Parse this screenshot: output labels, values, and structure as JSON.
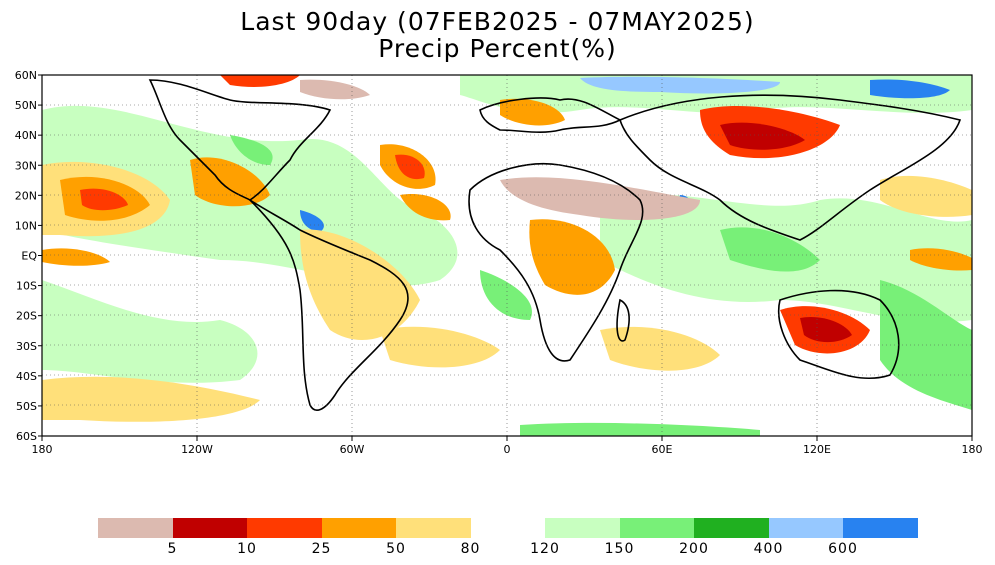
{
  "title": {
    "line1": "Last 90day (07FEB2025 - 07MAY2025)",
    "line2": "Precip Percent(%)"
  },
  "axes": {
    "lat_labels": [
      "60N",
      "50N",
      "40N",
      "30N",
      "20N",
      "10N",
      "EQ",
      "10S",
      "20S",
      "30S",
      "40S",
      "50S",
      "60S"
    ],
    "lon_labels": [
      "180",
      "120W",
      "60W",
      "0",
      "60E",
      "120E",
      "180"
    ]
  },
  "colorbar": {
    "low": [
      {
        "color": "#dcbab0"
      },
      {
        "color": "#c00000"
      },
      {
        "color": "#ff3a00"
      },
      {
        "color": "#ffa000"
      },
      {
        "color": "#ffe07a"
      }
    ],
    "high": [
      {
        "color": "#c8ffc0"
      },
      {
        "color": "#78f078"
      },
      {
        "color": "#20b020"
      },
      {
        "color": "#96c8ff"
      },
      {
        "color": "#2882f0"
      }
    ],
    "low_labels": [
      "5",
      "10",
      "25",
      "50",
      "80"
    ],
    "high_labels": [
      "120",
      "150",
      "200",
      "400",
      "600"
    ]
  }
}
